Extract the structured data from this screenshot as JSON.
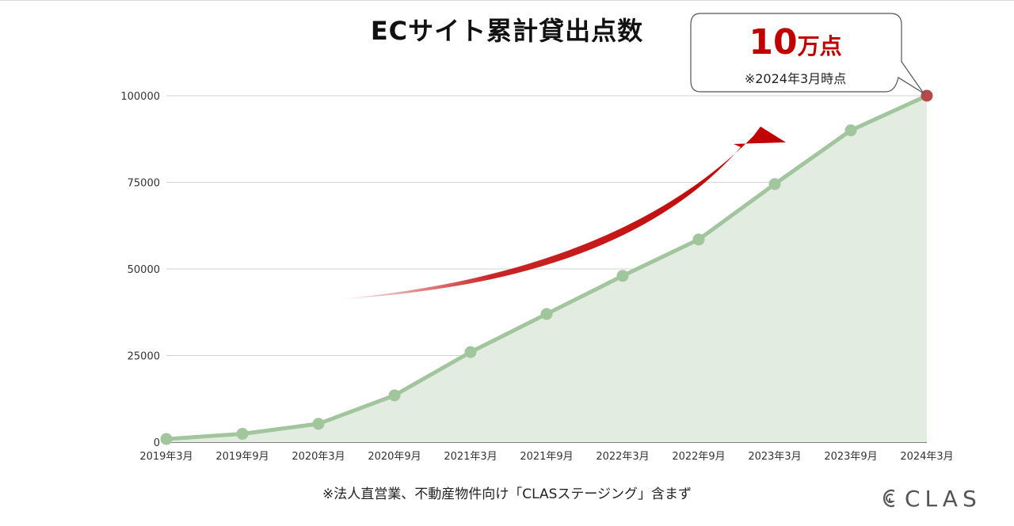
{
  "chart_data": {
    "type": "area",
    "title": "ECサイト累計貸出点数",
    "categories": [
      "2019年3月",
      "2019年9月",
      "2020年3月",
      "2020年9月",
      "2021年3月",
      "2021年9月",
      "2022年3月",
      "2022年9月",
      "2023年3月",
      "2023年9月",
      "2024年3月"
    ],
    "series": [
      {
        "values": [
          900,
          2400,
          5300,
          13500,
          26000,
          37000,
          48000,
          58500,
          74500,
          90000,
          100000
        ]
      }
    ],
    "yticks": [
      "0",
      "25000",
      "50000",
      "75000",
      "100000"
    ],
    "ylim": [
      0,
      100000
    ],
    "grid": true,
    "colors": {
      "line": "#a1c59c",
      "fill": "#e2ece0",
      "marker": "#a1c59c",
      "highlight_marker": "#b54a4a",
      "arrow": "#c00000",
      "grid": "#d3d3d3"
    }
  },
  "callout": {
    "main": "10",
    "unit": "万点",
    "sub": "※2024年3月時点"
  },
  "footnote": "※法人直営業、不動産物件向け「CLASステージング」含まず",
  "logo": {
    "text": "CLAS",
    "icon": "clas-logo-icon"
  }
}
